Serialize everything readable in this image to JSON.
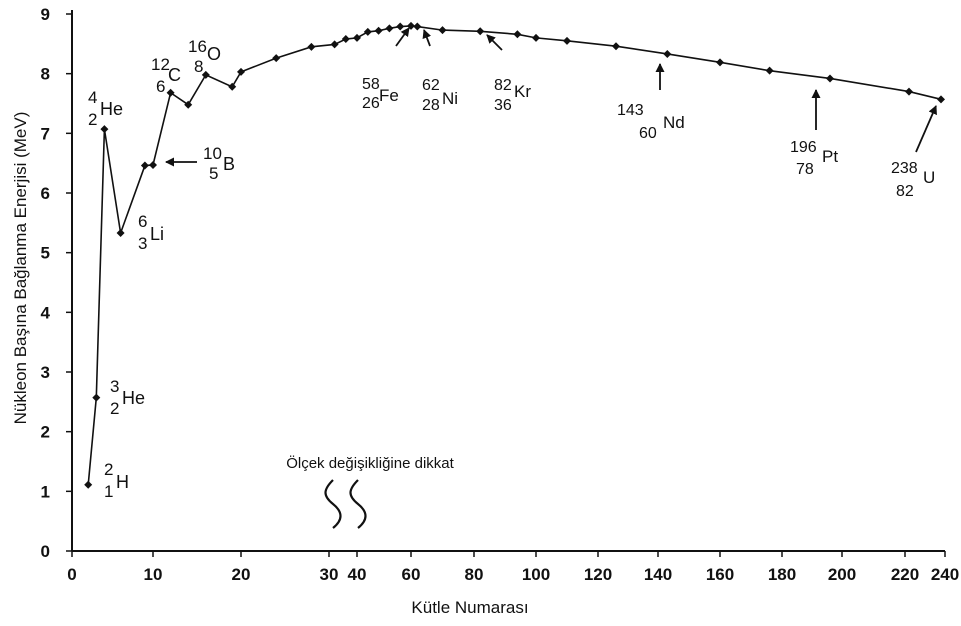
{
  "chart_data": {
    "type": "line",
    "xlabel": "Kütle Numarası",
    "ylabel": "Nükleon Başına Bağlanma Enerjisi (MeV)",
    "ylim": [
      0,
      9
    ],
    "y_ticks": [
      "0",
      "1",
      "2",
      "3",
      "4",
      "5",
      "6",
      "7",
      "8",
      "9"
    ],
    "x_ticks": [
      "0",
      "10",
      "20",
      "30",
      "40",
      "60",
      "80",
      "100",
      "120",
      "140",
      "160",
      "180",
      "200",
      "220",
      "240"
    ],
    "x_scale_note": "Ölçek değişikliğine dikkat",
    "grid": false,
    "series": [
      {
        "x": [
          2,
          3,
          4,
          6,
          9,
          10,
          12,
          14,
          16,
          19,
          20,
          24,
          28,
          32,
          36,
          40,
          44,
          48,
          52,
          56,
          60,
          62,
          70,
          82,
          94,
          100,
          110,
          126,
          143,
          160,
          176,
          196,
          222,
          238
        ],
        "values": [
          1.11,
          2.57,
          7.07,
          5.33,
          6.46,
          6.47,
          7.68,
          7.48,
          7.98,
          7.78,
          8.03,
          8.26,
          8.45,
          8.49,
          8.58,
          8.6,
          8.7,
          8.72,
          8.76,
          8.79,
          8.8,
          8.79,
          8.73,
          8.71,
          8.66,
          8.6,
          8.55,
          8.46,
          8.33,
          8.19,
          8.05,
          7.92,
          7.7,
          7.57
        ]
      }
    ],
    "annotations": [
      {
        "id": "h2",
        "mass": "2",
        "atomic": "1",
        "symbol": "H"
      },
      {
        "id": "he3",
        "mass": "3",
        "atomic": "2",
        "symbol": "He"
      },
      {
        "id": "he4",
        "mass": "4",
        "atomic": "2",
        "symbol": "He"
      },
      {
        "id": "li6",
        "mass": "6",
        "atomic": "3",
        "symbol": "Li"
      },
      {
        "id": "b10",
        "mass": "10",
        "atomic": "5",
        "symbol": "B"
      },
      {
        "id": "c12",
        "mass": "12",
        "atomic": "6",
        "symbol": "C"
      },
      {
        "id": "o16",
        "mass": "16",
        "atomic": "8",
        "symbol": "O"
      },
      {
        "id": "fe58",
        "mass": "58",
        "atomic": "26",
        "symbol": "Fe"
      },
      {
        "id": "ni62",
        "mass": "62",
        "atomic": "28",
        "symbol": "Ni"
      },
      {
        "id": "kr82",
        "mass": "82",
        "atomic": "36",
        "symbol": "Kr"
      },
      {
        "id": "nd143",
        "mass": "143",
        "atomic": "60",
        "symbol": "Nd"
      },
      {
        "id": "pt196",
        "mass": "196",
        "atomic": "78",
        "symbol": "Pt"
      },
      {
        "id": "u238",
        "mass": "238",
        "atomic": "82",
        "symbol": "U"
      }
    ]
  }
}
